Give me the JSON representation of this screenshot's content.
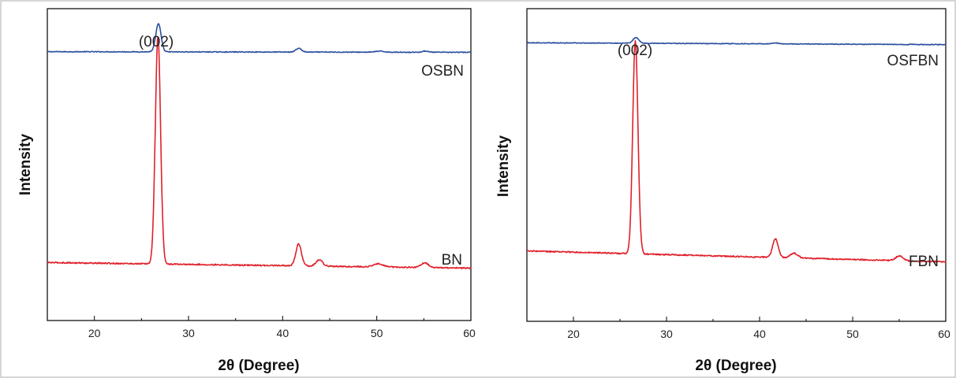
{
  "colors": {
    "upper_series": "#2b4fa0",
    "lower_series": "#e0202a",
    "frame": "#000000"
  },
  "chart_data": [
    {
      "type": "line",
      "xlabel": "2θ (Degree)",
      "ylabel": "Intensity",
      "xlim": [
        15,
        60
      ],
      "ylim": [
        0,
        1
      ],
      "xticks": [
        20,
        30,
        40,
        50,
        60
      ],
      "y_tick_labels": false,
      "grid": false,
      "legend": "none",
      "series": [
        {
          "name": "OSBN",
          "color": "#2b4fa0",
          "baseline": 0.86,
          "tilt": 0.002,
          "noise": 0.0025,
          "peaks": [
            [
              26.8,
              0.09,
              0.28
            ],
            [
              41.7,
              0.012,
              0.3
            ],
            [
              55.2,
              0.004,
              0.3
            ],
            [
              50.3,
              0.003,
              0.5
            ]
          ]
        },
        {
          "name": "BN",
          "color": "#e0202a",
          "baseline": 0.168,
          "tilt": 0.018,
          "noise": 0.004,
          "peaks": [
            [
              26.75,
              0.73,
              0.28
            ],
            [
              41.7,
              0.07,
              0.3
            ],
            [
              43.9,
              0.02,
              0.35
            ],
            [
              50.2,
              0.01,
              0.5
            ],
            [
              55.1,
              0.015,
              0.4
            ]
          ]
        }
      ],
      "annotations": [
        {
          "text": "(002)",
          "x": 26.8
        }
      ]
    },
    {
      "type": "line",
      "xlabel": "2θ (Degree)",
      "ylabel": "Intensity",
      "xlim": [
        15,
        60
      ],
      "ylim": [
        0,
        1
      ],
      "xticks": [
        20,
        30,
        40,
        50,
        60
      ],
      "y_tick_labels": false,
      "grid": false,
      "legend": "none",
      "series": [
        {
          "name": "OSFBN",
          "color": "#2b4fa0",
          "baseline": 0.885,
          "tilt": 0.006,
          "noise": 0.0022,
          "peaks": [
            [
              26.7,
              0.018,
              0.3
            ],
            [
              41.7,
              0.003,
              0.3
            ]
          ]
        },
        {
          "name": "FBN",
          "color": "#e0202a",
          "baseline": 0.19,
          "tilt": 0.035,
          "noise": 0.004,
          "peaks": [
            [
              26.65,
              0.68,
              0.28
            ],
            [
              41.7,
              0.06,
              0.3
            ],
            [
              43.7,
              0.015,
              0.4
            ],
            [
              55.0,
              0.015,
              0.4
            ]
          ]
        }
      ],
      "annotations": [
        {
          "text": "(002)",
          "x": 26.7
        }
      ]
    }
  ]
}
